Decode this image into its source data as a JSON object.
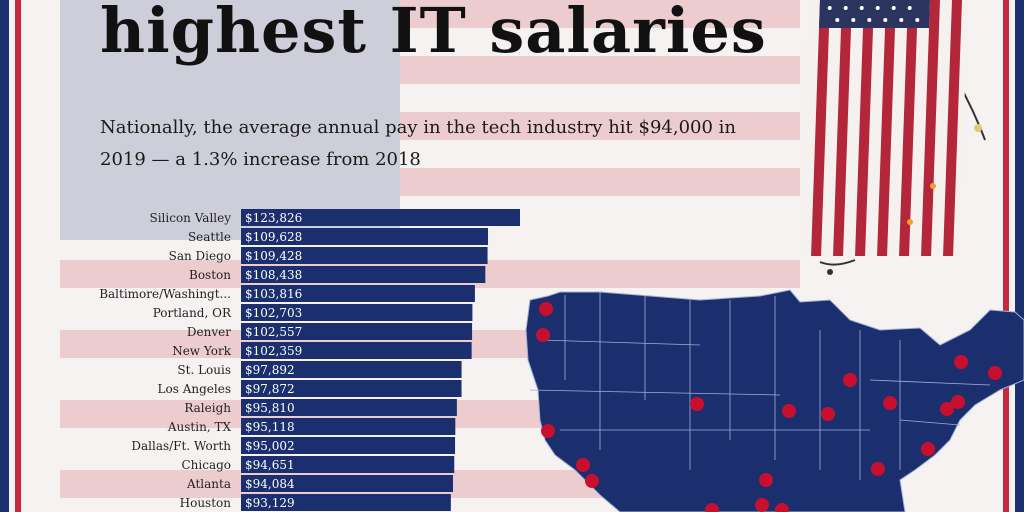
{
  "title": "highest IT salaries",
  "subtitle": "Nationally, the average annual pay in the tech industry hit $94,000 in 2019 — a 1.3% increase from 2018",
  "colors": {
    "bar": "#1b2f6e",
    "bar_label": "#ffffff",
    "navy": "#1b2f6e",
    "red": "#c8283e",
    "dot": "#c8102e"
  },
  "chart_data": {
    "type": "bar",
    "orientation": "horizontal",
    "categories": [
      "Silicon Valley",
      "Seattle",
      "San Diego",
      "Boston",
      "Baltimore/Washingt...",
      "Portland, OR",
      "Denver",
      "New York",
      "St. Louis",
      "Los Angeles",
      "Raleigh",
      "Austin, TX",
      "Dallas/Ft. Worth",
      "Chicago",
      "Atlanta",
      "Houston"
    ],
    "values": [
      123826,
      109628,
      109428,
      108438,
      103816,
      102703,
      102557,
      102359,
      97892,
      97872,
      95810,
      95118,
      95002,
      94651,
      94084,
      93129
    ],
    "value_labels": [
      "$123,826",
      "$109,628",
      "$109,428",
      "$108,438",
      "$103,816",
      "$102,703",
      "$102,557",
      "$102,359",
      "$97,892",
      "$97,872",
      "$95,810",
      "$95,118",
      "$95,002",
      "$94,651",
      "$94,084",
      "$93,129"
    ],
    "xlim": [
      0,
      123826
    ],
    "grid": false,
    "legend": "none"
  }
}
